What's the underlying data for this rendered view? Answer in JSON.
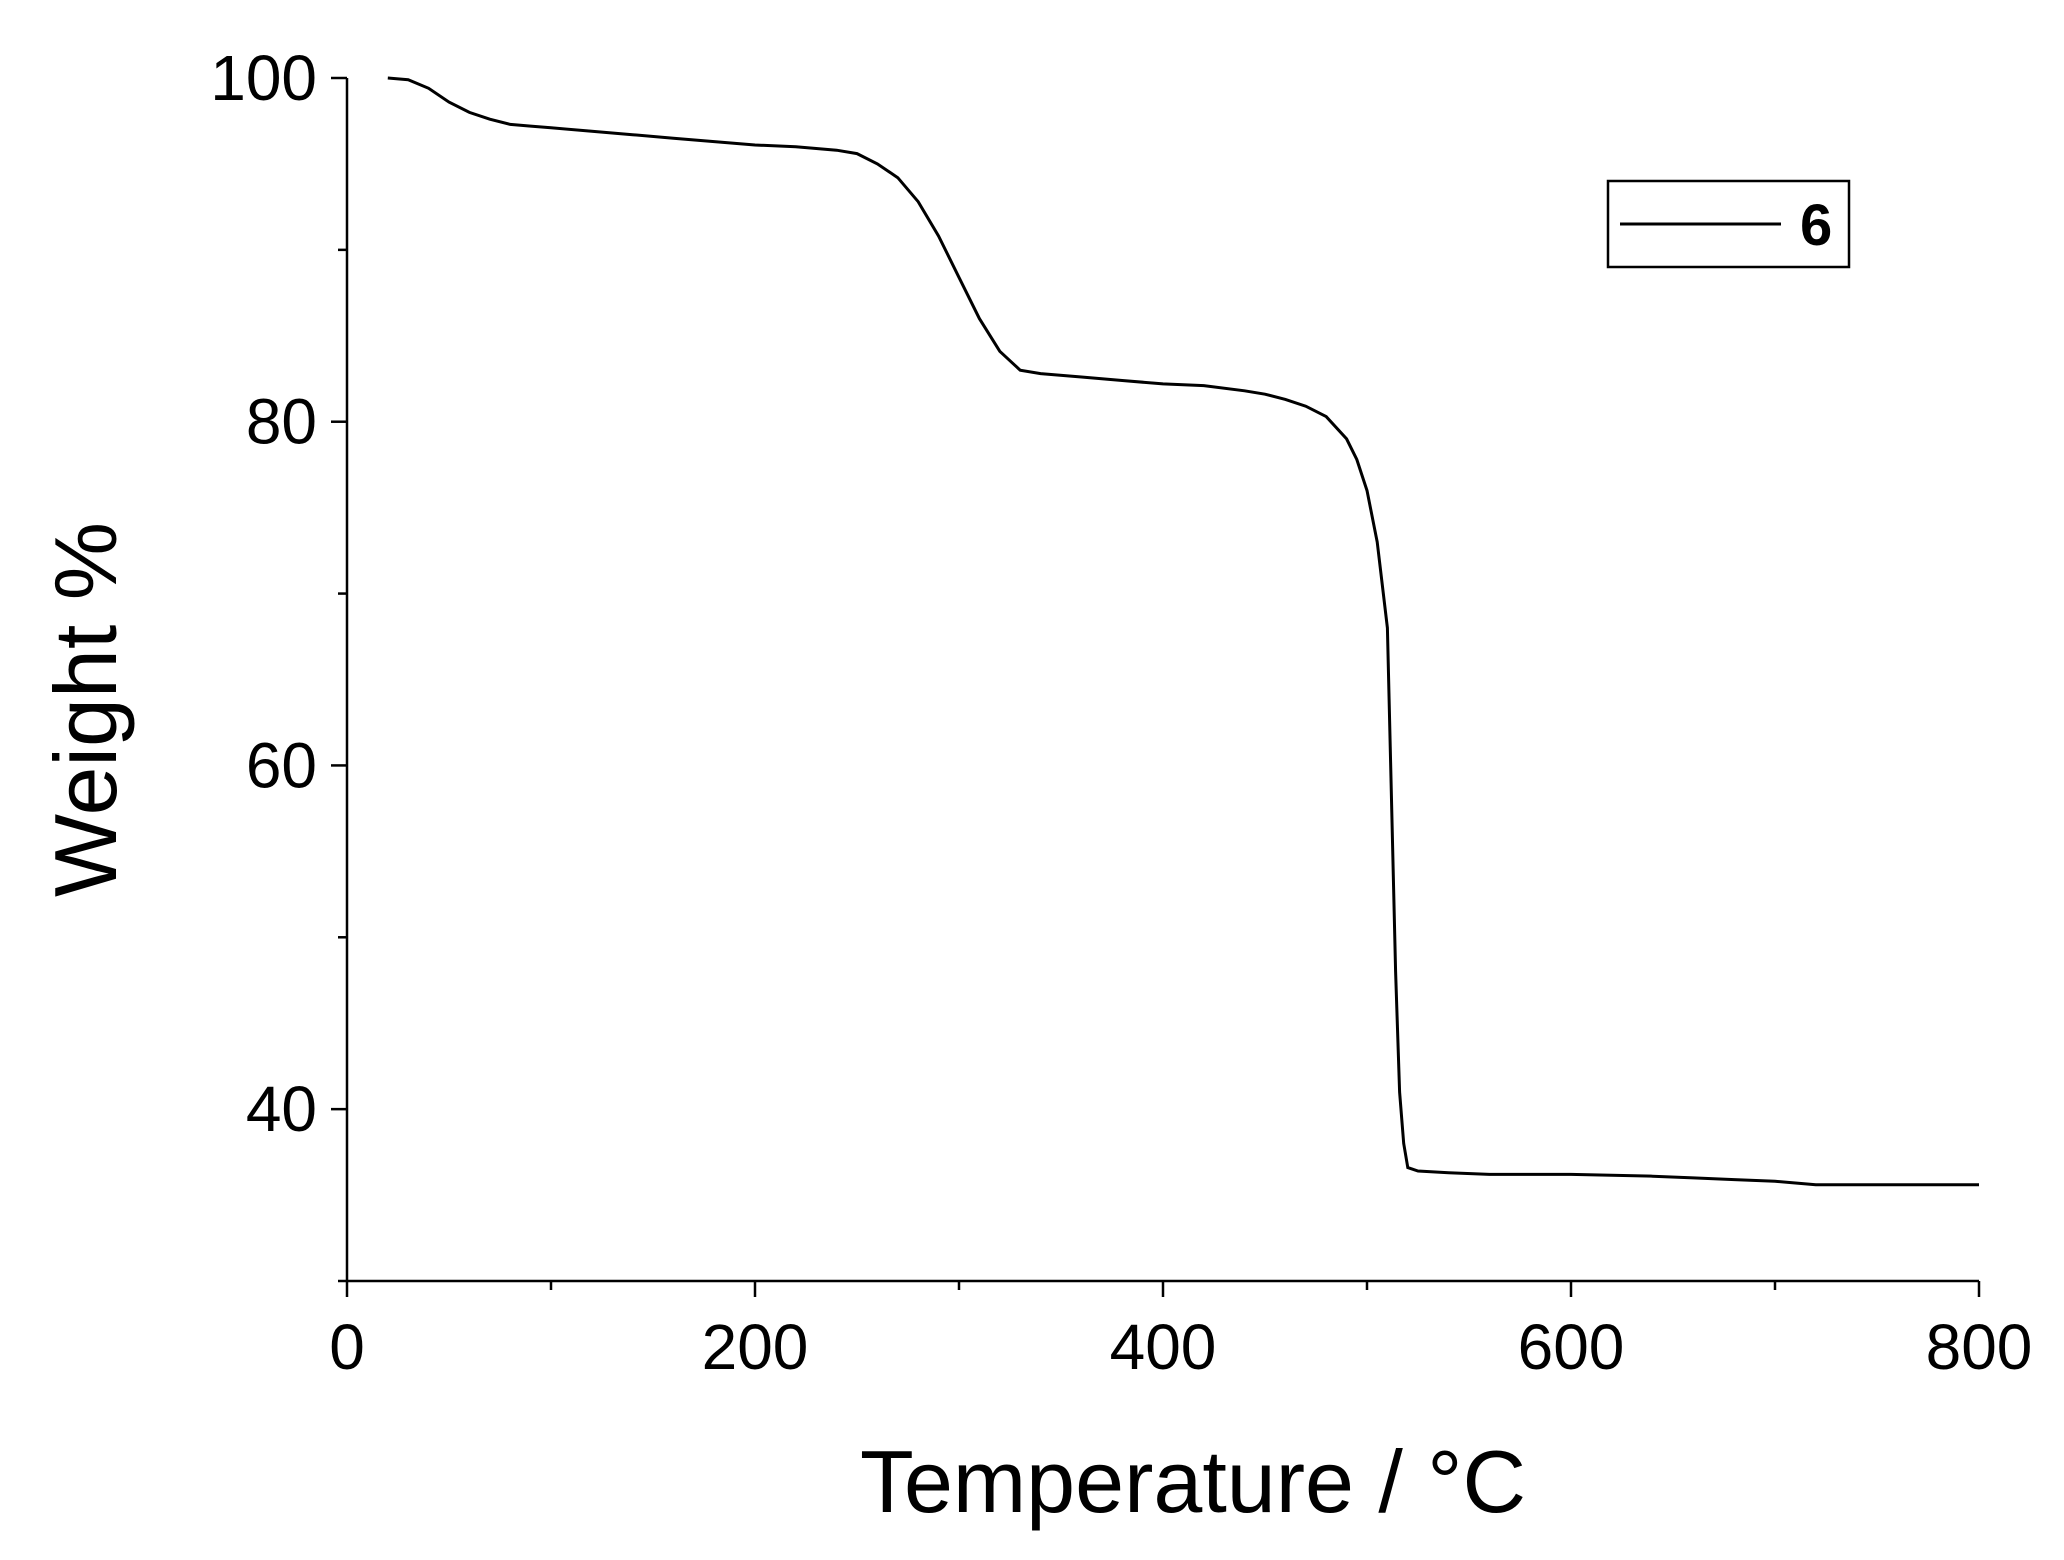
{
  "chart_data": {
    "type": "line",
    "xlabel": "Temperature / °C",
    "ylabel": "Weight %",
    "xlim": [
      0,
      800
    ],
    "ylim": [
      30,
      100
    ],
    "x_ticks": [
      0,
      200,
      400,
      600,
      800
    ],
    "y_ticks": [
      40,
      60,
      80,
      100
    ],
    "grid": false,
    "legend_position": "top-right",
    "series": [
      {
        "name": "6",
        "color": "#000000",
        "x": [
          20,
          30,
          40,
          50,
          60,
          70,
          80,
          90,
          100,
          120,
          140,
          160,
          180,
          200,
          220,
          240,
          250,
          260,
          270,
          280,
          290,
          300,
          310,
          320,
          330,
          340,
          360,
          380,
          400,
          420,
          440,
          450,
          460,
          470,
          480,
          490,
          495,
          500,
          505,
          510,
          512,
          514,
          516,
          518,
          520,
          525,
          540,
          560,
          600,
          640,
          660,
          680,
          700,
          710,
          720,
          760,
          800
        ],
        "y": [
          100,
          99.9,
          99.4,
          98.6,
          98.0,
          97.6,
          97.3,
          97.2,
          97.1,
          96.9,
          96.7,
          96.5,
          96.3,
          96.1,
          96.0,
          95.8,
          95.6,
          95.0,
          94.2,
          92.8,
          90.8,
          88.4,
          86.0,
          84.1,
          83.0,
          82.8,
          82.6,
          82.4,
          82.2,
          82.1,
          81.8,
          81.6,
          81.3,
          80.9,
          80.3,
          79.0,
          77.8,
          76.0,
          73.0,
          68.0,
          58.0,
          48.0,
          41.0,
          38.0,
          36.6,
          36.4,
          36.3,
          36.2,
          36.2,
          36.1,
          36.0,
          35.9,
          35.8,
          35.7,
          35.6,
          35.6,
          35.6
        ]
      }
    ]
  }
}
